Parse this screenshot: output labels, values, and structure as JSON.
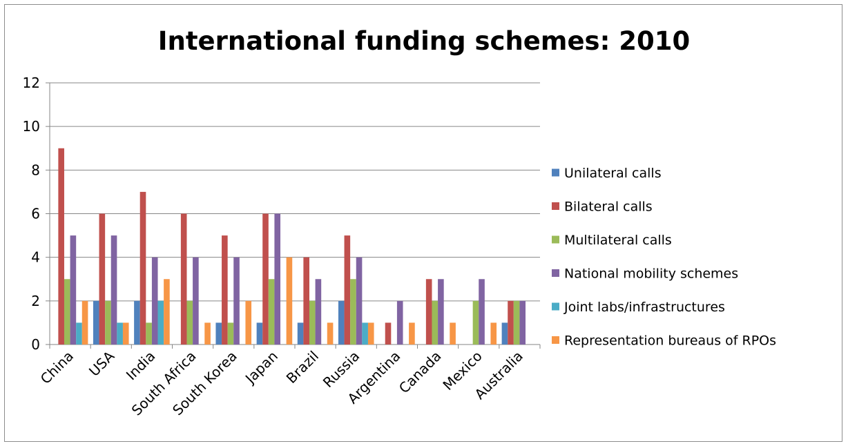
{
  "chart_data": {
    "type": "bar",
    "title": "International funding schemes: 2010",
    "xlabel": "",
    "ylabel": "",
    "ylim": [
      0,
      12
    ],
    "yticks": [
      0,
      2,
      4,
      6,
      8,
      10,
      12
    ],
    "grid": true,
    "legend_position": "right",
    "categories": [
      "China",
      "USA",
      "India",
      "South Africa",
      "South Korea",
      "Japan",
      "Brazil",
      "Russia",
      "Argentina",
      "Canada",
      "Mexico",
      "Australia"
    ],
    "series": [
      {
        "name": "Unilateral calls",
        "color": "#4f81bd",
        "values": [
          0,
          2,
          2,
          0,
          1,
          1,
          1,
          2,
          0,
          0,
          0,
          1
        ]
      },
      {
        "name": "Bilateral calls",
        "color": "#c0504d",
        "values": [
          9,
          6,
          7,
          6,
          5,
          6,
          4,
          5,
          1,
          3,
          0,
          2
        ]
      },
      {
        "name": "Multilateral calls",
        "color": "#9bbb59",
        "values": [
          3,
          2,
          1,
          2,
          1,
          3,
          2,
          3,
          0,
          2,
          2,
          2
        ]
      },
      {
        "name": "National mobility schemes",
        "color": "#8064a2",
        "values": [
          5,
          5,
          4,
          4,
          4,
          6,
          3,
          4,
          2,
          3,
          3,
          2
        ]
      },
      {
        "name": "Joint labs/infrastructures",
        "color": "#4bacc6",
        "values": [
          1,
          1,
          2,
          0,
          0,
          0,
          0,
          1,
          0,
          0,
          0,
          0
        ]
      },
      {
        "name": "Representation bureaus of RPOs",
        "color": "#f79646",
        "values": [
          2,
          1,
          3,
          1,
          2,
          4,
          1,
          1,
          1,
          1,
          1,
          0
        ]
      }
    ]
  }
}
